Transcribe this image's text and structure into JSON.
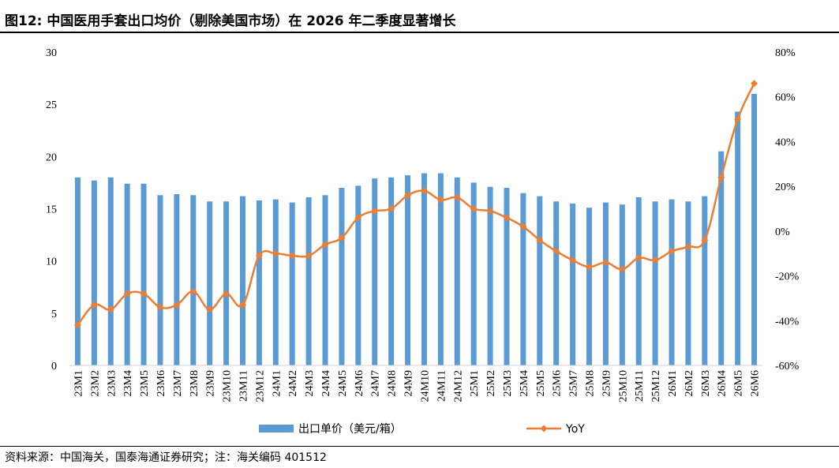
{
  "header": {
    "title": "图12:  中国医用手套出口均价（剔除美国市场）在 2026 年二季度显著增长"
  },
  "footer": {
    "source": "资料来源：中国海关，国泰海通证券研究；注：海关编码 401512"
  },
  "colors": {
    "bar": "#5b9bd5",
    "line": "#ed7d31"
  },
  "chart_data": {
    "type": "bar",
    "title": "",
    "categories": [
      "23M1",
      "23M2",
      "23M3",
      "23M4",
      "23M5",
      "23M6",
      "23M7",
      "23M8",
      "23M9",
      "23M10",
      "23M11",
      "23M12",
      "24M1",
      "24M2",
      "24M3",
      "24M4",
      "24M5",
      "24M6",
      "24M7",
      "24M8",
      "24M9",
      "24M10",
      "24M11",
      "24M12",
      "25M1",
      "25M2",
      "25M3",
      "25M4",
      "25M5",
      "25M6",
      "25M7",
      "25M8",
      "25M9",
      "25M10",
      "25M11",
      "25M12",
      "26M1",
      "26M2",
      "26M3",
      "26M4",
      "26M5",
      "26M6"
    ],
    "series": [
      {
        "name": "出口单价（美元/箱）",
        "type": "bar",
        "axis": "left",
        "values": [
          18.0,
          17.7,
          18.0,
          17.4,
          17.4,
          16.3,
          16.4,
          16.3,
          15.7,
          15.7,
          16.2,
          15.8,
          15.9,
          15.6,
          16.1,
          16.3,
          17.0,
          17.2,
          17.9,
          18.0,
          18.2,
          18.4,
          18.4,
          18.0,
          17.5,
          17.1,
          17.0,
          16.5,
          16.2,
          15.7,
          15.5,
          15.1,
          15.6,
          15.4,
          16.1,
          15.7,
          15.9,
          15.7,
          16.2,
          20.5,
          24.3,
          26.0
        ]
      },
      {
        "name": "YoY",
        "type": "line",
        "axis": "right",
        "values": [
          -42,
          -33,
          -35,
          -28,
          -28,
          -34,
          -33,
          -27,
          -35,
          -28,
          -33,
          -11,
          -10,
          -11,
          -11,
          -6,
          -3,
          6,
          9,
          10,
          16,
          18,
          14,
          15,
          10,
          9,
          6,
          2,
          -4,
          -9,
          -13,
          -16,
          -14,
          -17,
          -12,
          -13,
          -9,
          -7,
          -4,
          24,
          50,
          66
        ]
      }
    ],
    "y_left": {
      "ylim": [
        0,
        30
      ],
      "ticks": [
        0,
        5,
        10,
        15,
        20,
        25,
        30
      ]
    },
    "y_right": {
      "ylim": [
        -60,
        80
      ],
      "ticks": [
        "-60%",
        "-40%",
        "-20%",
        "0%",
        "20%",
        "40%",
        "60%",
        "80%"
      ],
      "tick_values": [
        -60,
        -40,
        -20,
        0,
        20,
        40,
        60,
        80
      ]
    },
    "xlabel": "",
    "ylabel": "",
    "grid": false,
    "legend_position": "bottom"
  }
}
